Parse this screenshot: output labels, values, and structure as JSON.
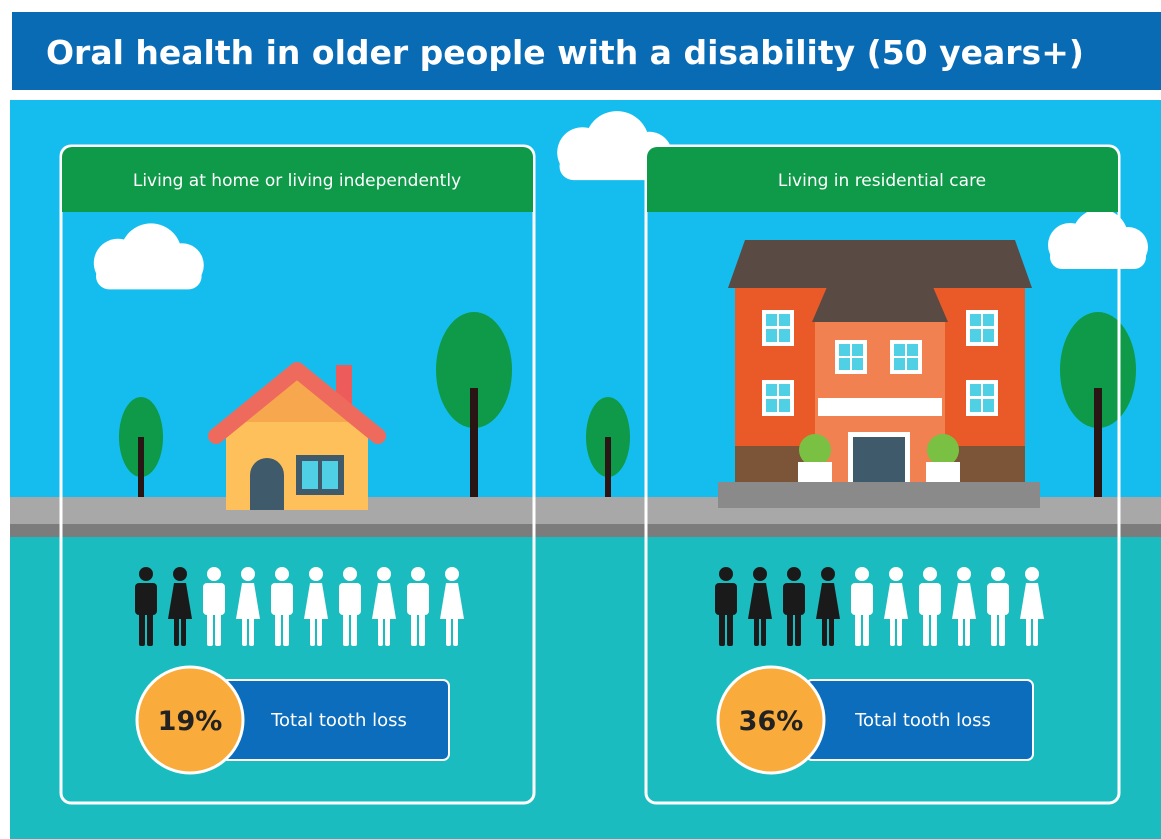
{
  "header": {
    "title": "Oral health in older people with a disability  (50 years+)"
  },
  "panels": [
    {
      "heading": "Living at home or living independently",
      "percent": "19%",
      "label": "Total tooth loss"
    },
    {
      "heading": "Living in residential care",
      "percent": "36%",
      "label": "Total tooth loss"
    }
  ]
}
